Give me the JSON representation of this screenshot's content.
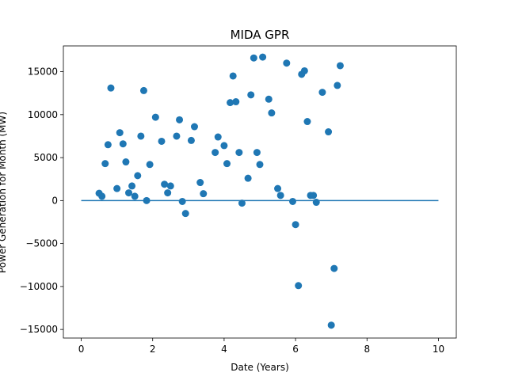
{
  "chart_data": {
    "type": "scatter",
    "title": "MIDA GPR",
    "xlabel": "Date (Years)",
    "ylabel": "Power Generation for Month (MW)",
    "xlim": [
      -0.5,
      10.5
    ],
    "ylim": [
      -16000,
      18000
    ],
    "xticks": [
      0,
      2,
      4,
      6,
      8,
      10
    ],
    "yticks": [
      -15000,
      -10000,
      -5000,
      0,
      5000,
      10000,
      15000
    ],
    "grid": false,
    "colors": {
      "points": "#1f77b4",
      "line": "#1f77b4"
    },
    "series": [
      {
        "type": "scatter",
        "points": [
          [
            0.5,
            850
          ],
          [
            0.58,
            500
          ],
          [
            0.67,
            4300
          ],
          [
            0.75,
            6500
          ],
          [
            0.83,
            13100
          ],
          [
            1.0,
            1400
          ],
          [
            1.08,
            7900
          ],
          [
            1.17,
            6600
          ],
          [
            1.25,
            4500
          ],
          [
            1.33,
            900
          ],
          [
            1.42,
            1700
          ],
          [
            1.5,
            500
          ],
          [
            1.58,
            2900
          ],
          [
            1.67,
            7500
          ],
          [
            1.75,
            12800
          ],
          [
            1.83,
            0
          ],
          [
            1.92,
            4200
          ],
          [
            2.08,
            9700
          ],
          [
            2.25,
            6900
          ],
          [
            2.33,
            1900
          ],
          [
            2.42,
            900
          ],
          [
            2.5,
            1700
          ],
          [
            2.67,
            7500
          ],
          [
            2.75,
            9400
          ],
          [
            2.83,
            -100
          ],
          [
            2.92,
            -1500
          ],
          [
            3.08,
            7000
          ],
          [
            3.17,
            8600
          ],
          [
            3.33,
            2100
          ],
          [
            3.42,
            800
          ],
          [
            3.75,
            5600
          ],
          [
            3.83,
            7400
          ],
          [
            4.0,
            6400
          ],
          [
            4.08,
            4300
          ],
          [
            4.17,
            11400
          ],
          [
            4.25,
            14500
          ],
          [
            4.33,
            11500
          ],
          [
            4.42,
            5600
          ],
          [
            4.5,
            -300
          ],
          [
            4.67,
            2600
          ],
          [
            4.75,
            12300
          ],
          [
            4.83,
            16600
          ],
          [
            4.92,
            5600
          ],
          [
            5.0,
            4200
          ],
          [
            5.08,
            16700
          ],
          [
            5.25,
            11800
          ],
          [
            5.33,
            10200
          ],
          [
            5.5,
            1400
          ],
          [
            5.58,
            600
          ],
          [
            5.75,
            16000
          ],
          [
            5.92,
            -100
          ],
          [
            6.0,
            -2800
          ],
          [
            6.08,
            -9900
          ],
          [
            6.17,
            14700
          ],
          [
            6.25,
            15100
          ],
          [
            6.33,
            9200
          ],
          [
            6.42,
            600
          ],
          [
            6.5,
            600
          ],
          [
            6.58,
            -200
          ],
          [
            6.75,
            12600
          ],
          [
            6.92,
            8000
          ],
          [
            7.0,
            -14500
          ],
          [
            7.08,
            -7900
          ],
          [
            7.17,
            13400
          ],
          [
            7.25,
            15700
          ]
        ]
      },
      {
        "type": "line",
        "points": [
          [
            0,
            0
          ],
          [
            10,
            0
          ]
        ]
      }
    ]
  }
}
